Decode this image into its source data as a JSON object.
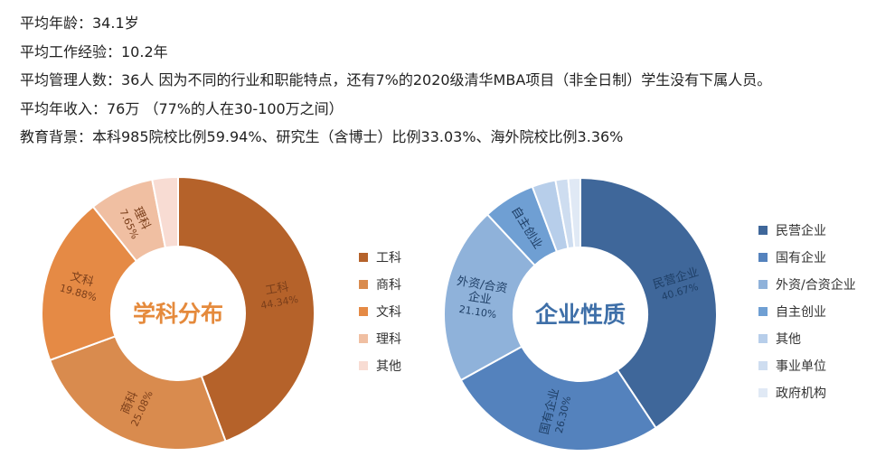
{
  "lines": [
    "平均年龄：34.1岁",
    "平均工作经验：10.2年",
    "平均管理人数：36人 因为不同的行业和职能特点，还有7%的2020级清华MBA项目（非全日制）学生没有下属人员。",
    "平均年收入：76万 （77%的人在30-100万之间）",
    "教育背景：本科985院校比例59.94%、研究生（含博士）比例33.03%、海外院校比例3.36%"
  ],
  "chart_data": [
    {
      "type": "pie",
      "title": "学科分布",
      "categories": [
        "工科",
        "商科",
        "文科",
        "理科",
        "其他"
      ],
      "values": [
        44.34,
        25.08,
        19.88,
        7.65,
        3.05
      ],
      "slice_labels": [
        [
          "工科",
          "44.34%"
        ],
        [
          "商科",
          "25.08%"
        ],
        [
          "文科",
          "19.88%"
        ],
        [
          "理科",
          "7.65%"
        ],
        null
      ],
      "colors": [
        "#B5622A",
        "#D98B4E",
        "#E58A45",
        "#F0BFA2",
        "#F8DCD3"
      ],
      "label_color": "#7a3e1a",
      "title_color": "#E58A3C",
      "legend_position": "right"
    },
    {
      "type": "pie",
      "title": "企业性质",
      "categories": [
        "民营企业",
        "国有企业",
        "外资/合资企业",
        "自主创业",
        "其他",
        "事业单位",
        "政府机构"
      ],
      "values": [
        40.67,
        26.3,
        21.1,
        6.2,
        2.8,
        1.5,
        1.43
      ],
      "slice_labels": [
        [
          "民营企业",
          "40.67%"
        ],
        [
          "国有企业",
          "26.30%"
        ],
        [
          "外资/合资",
          "企业",
          "21.10%"
        ],
        [
          "自主创业"
        ],
        null,
        null,
        null
      ],
      "colors": [
        "#3F679A",
        "#5482BD",
        "#8FB2DA",
        "#6F9FD3",
        "#B7CEEA",
        "#CEDDF0",
        "#E0E9F5"
      ],
      "label_color": "#1f3f66",
      "title_color": "#3E6FA8",
      "legend_position": "right"
    }
  ]
}
